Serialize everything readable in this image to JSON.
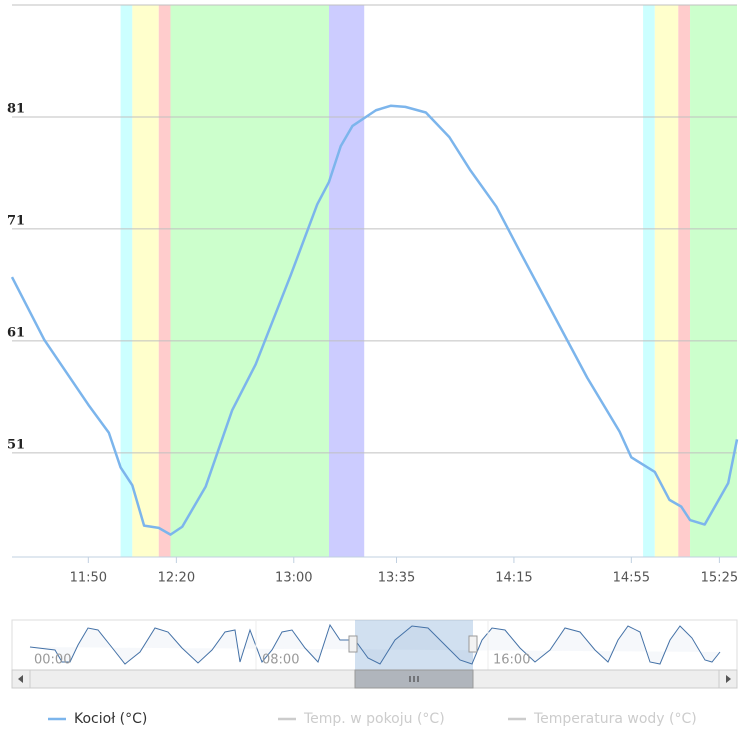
{
  "chart_data": {
    "type": "line",
    "x": [
      "11:24",
      "11:35",
      "11:50",
      "11:57",
      "12:01",
      "12:05",
      "12:09",
      "12:14",
      "12:18",
      "12:22",
      "12:30",
      "12:39",
      "12:47",
      "12:59",
      "13:08",
      "13:12",
      "13:16",
      "13:20",
      "13:28",
      "13:33",
      "13:38",
      "13:45",
      "13:53",
      "14:00",
      "14:09",
      "14:17",
      "14:29",
      "14:40",
      "14:51",
      "14:55",
      "15:03",
      "15:08",
      "15:12",
      "15:15",
      "15:20",
      "15:28",
      "15:31"
    ],
    "series": [
      {
        "name": "Kocioł (°C)",
        "color": "#7cb5ec",
        "values": [
          66.7,
          61.1,
          55.3,
          52.8,
          49.7,
          48.1,
          44.5,
          44.3,
          43.7,
          44.4,
          48.0,
          54.8,
          58.9,
          66.9,
          73.2,
          75.2,
          78.4,
          80.2,
          81.6,
          82.0,
          81.9,
          81.4,
          79.2,
          76.3,
          73.0,
          69.0,
          63.1,
          57.7,
          52.9,
          50.6,
          49.3,
          46.8,
          46.2,
          45.0,
          44.6,
          48.3,
          52.2
        ]
      },
      {
        "name": "Temp. w pokoju (°C)",
        "color": "#cccccc",
        "visible": false
      },
      {
        "name": "Temperatura wody (°C)",
        "color": "#cccccc",
        "visible": false
      }
    ],
    "xlim": [
      "11:24",
      "15:31"
    ],
    "xticks": [
      "11:50",
      "12:20",
      "13:00",
      "13:35",
      "14:15",
      "14:55",
      "15:25"
    ],
    "ylim": [
      41.7,
      91
    ],
    "yticks": [
      51,
      61,
      71,
      81
    ],
    "grid": true,
    "plot_bands": [
      {
        "from": "12:01",
        "to": "12:05",
        "color": "#ccffff"
      },
      {
        "from": "12:05",
        "to": "12:14",
        "color": "#ffffcc"
      },
      {
        "from": "12:14",
        "to": "12:18",
        "color": "#ffcccc"
      },
      {
        "from": "12:18",
        "to": "13:12",
        "color": "#ccffcc"
      },
      {
        "from": "13:12",
        "to": "13:24",
        "color": "#ccccff"
      },
      {
        "from": "14:59",
        "to": "15:03",
        "color": "#ccffff"
      },
      {
        "from": "15:03",
        "to": "15:11",
        "color": "#ffffcc"
      },
      {
        "from": "15:11",
        "to": "15:15",
        "color": "#ffcccc"
      },
      {
        "from": "15:15",
        "to": "15:31",
        "color": "#ccffcc"
      }
    ],
    "navigator_labels": [
      "00:00",
      "08:00",
      "16:00"
    ]
  }
}
